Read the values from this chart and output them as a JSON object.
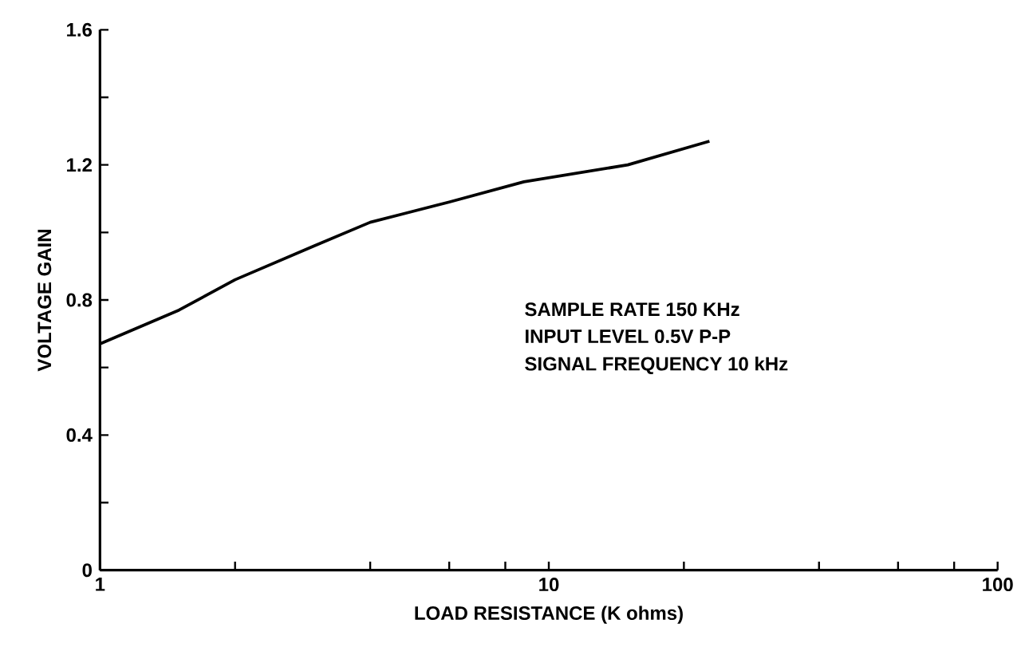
{
  "chart_data": {
    "type": "line",
    "xlabel": "LOAD RESISTANCE (K ohms)",
    "ylabel": "VOLTAGE GAIN",
    "x": [
      1,
      1.5,
      2,
      3,
      4,
      6,
      8.8,
      15,
      22.8
    ],
    "series": [
      {
        "color": "#000000",
        "values": [
          0.67,
          0.77,
          0.86,
          0.96,
          1.03,
          1.09,
          1.15,
          1.2,
          1.27
        ]
      }
    ],
    "log": "x",
    "xlim": [
      1,
      100
    ],
    "ylim": [
      0,
      1.6
    ],
    "xticks": [
      1,
      {
        "value": 2,
        "label": null
      },
      {
        "value": 4,
        "label": null
      },
      {
        "value": 6,
        "label": null
      },
      {
        "value": 8,
        "label": null
      },
      10,
      {
        "value": 20,
        "label": null
      },
      {
        "value": 40,
        "label": null
      },
      {
        "value": 60,
        "label": null
      },
      {
        "value": 80,
        "label": null
      },
      100
    ],
    "yticks": [
      0,
      {
        "value": 0.2,
        "label": null
      },
      0.4,
      {
        "value": 0.6,
        "label": null
      },
      0.8,
      {
        "value": 1.0,
        "label": null
      },
      1.2,
      {
        "value": 1.4,
        "label": null
      },
      1.6
    ],
    "grid": false,
    "marker": "none",
    "line_style": "solid",
    "annotations": [
      "SAMPLE RATE 150 KHz",
      "INPUT LEVEL 0.5V P-P",
      "SIGNAL FREQUENCY 10 kHz"
    ]
  }
}
